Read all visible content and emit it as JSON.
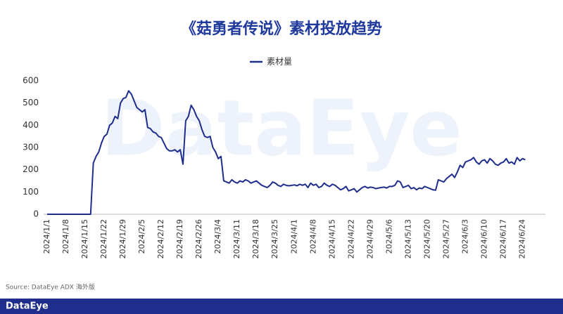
{
  "chart_data": {
    "type": "line",
    "title": "《菇勇者传说》素材投放趋势",
    "source": "Source: DataEye ADX 海外版",
    "watermark": "DataEye",
    "footer_logo": "DataEye",
    "categories": [
      "2024/1/1",
      null,
      null,
      null,
      null,
      null,
      null,
      "2024/1/8",
      null,
      null,
      null,
      null,
      null,
      null,
      "2024/1/15",
      null,
      null,
      null,
      null,
      null,
      null,
      "2024/1/22",
      null,
      null,
      null,
      null,
      null,
      null,
      "2024/1/29",
      null,
      null,
      null,
      null,
      null,
      null,
      "2024/2/5",
      null,
      null,
      null,
      null,
      null,
      null,
      "2024/2/12",
      null,
      null,
      null,
      null,
      null,
      null,
      "2024/2/19",
      null,
      null,
      null,
      null,
      null,
      null,
      "2024/2/26",
      null,
      null,
      null,
      null,
      null,
      null,
      "2024/3/4",
      null,
      null,
      null,
      null,
      null,
      null,
      "2024/3/11",
      null,
      null,
      null,
      null,
      null,
      null,
      "2024/3/18",
      null,
      null,
      null,
      null,
      null,
      null,
      "2024/3/25",
      null,
      null,
      null,
      null,
      null,
      null,
      "2024/4/1",
      null,
      null,
      null,
      null,
      null,
      null,
      "2024/4/8",
      null,
      null,
      null,
      null,
      null,
      null,
      "2024/4/15",
      null,
      null,
      null,
      null,
      null,
      null,
      "2024/4/22",
      null,
      null,
      null,
      null,
      null,
      null,
      "2024/4/29",
      null,
      null,
      null,
      null,
      null,
      null,
      "2024/5/6",
      null,
      null,
      null,
      null,
      null,
      null,
      "2024/5/13",
      null,
      null,
      null,
      null,
      null,
      null,
      "2024/5/20",
      null,
      null,
      null,
      null,
      null,
      null,
      "2024/5/27",
      null,
      null,
      null,
      null,
      null,
      null,
      "2024/6/3",
      null,
      null,
      null,
      null,
      null,
      null,
      "2024/6/10",
      null,
      null,
      null,
      null,
      null,
      null,
      "2024/6/17",
      null,
      null,
      null,
      null,
      null,
      null,
      "2024/6/24",
      null
    ],
    "series": [
      {
        "name": "素材量",
        "color": "#1f2e8c",
        "values": [
          0,
          0,
          0,
          0,
          0,
          0,
          0,
          0,
          0,
          0,
          0,
          0,
          0,
          0,
          0,
          0,
          0,
          230,
          260,
          280,
          320,
          350,
          360,
          400,
          410,
          440,
          430,
          500,
          520,
          525,
          555,
          540,
          510,
          480,
          470,
          460,
          470,
          390,
          385,
          370,
          365,
          350,
          345,
          320,
          295,
          285,
          285,
          290,
          280,
          290,
          225,
          420,
          440,
          490,
          470,
          440,
          420,
          380,
          350,
          345,
          350,
          300,
          280,
          250,
          260,
          150,
          145,
          140,
          155,
          145,
          140,
          150,
          145,
          155,
          150,
          140,
          145,
          150,
          140,
          130,
          125,
          120,
          130,
          145,
          140,
          130,
          125,
          135,
          130,
          128,
          130,
          132,
          128,
          135,
          130,
          135,
          120,
          140,
          130,
          135,
          120,
          125,
          140,
          130,
          125,
          135,
          130,
          120,
          110,
          115,
          125,
          105,
          110,
          115,
          100,
          110,
          120,
          125,
          118,
          122,
          120,
          115,
          118,
          120,
          122,
          118,
          125,
          125,
          130,
          150,
          145,
          120,
          125,
          130,
          115,
          120,
          110,
          118,
          115,
          125,
          120,
          115,
          110,
          108,
          155,
          150,
          145,
          160,
          170,
          180,
          165,
          190,
          220,
          210,
          235,
          240,
          245,
          255,
          235,
          225,
          240,
          245,
          230,
          250,
          240,
          225,
          220,
          230,
          235,
          250,
          230,
          235,
          225,
          255,
          240,
          250,
          245
        ]
      }
    ],
    "ylim": [
      0,
      600
    ],
    "yticks": [
      0,
      100,
      200,
      300,
      400,
      500,
      600
    ],
    "grid": false,
    "legend": "top"
  }
}
